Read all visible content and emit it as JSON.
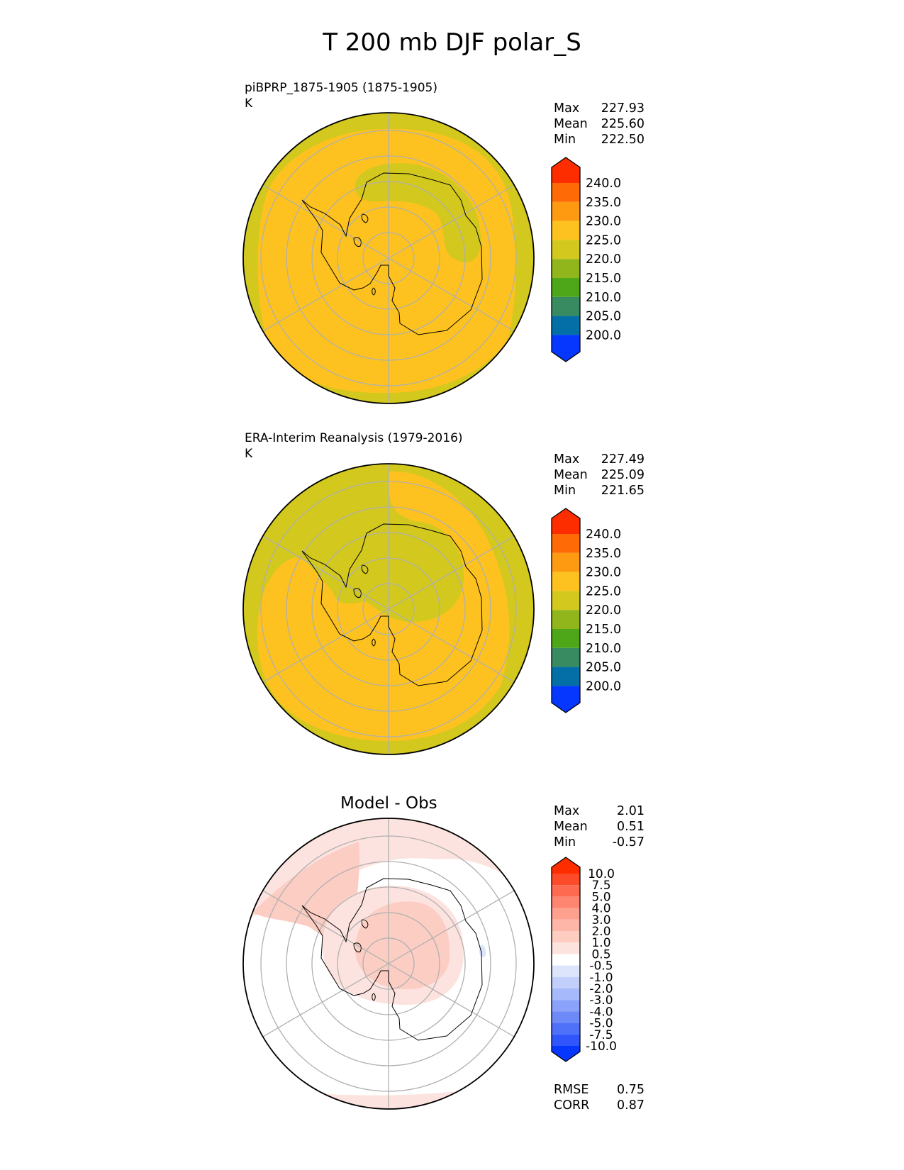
{
  "figure_title": "T 200 mb DJF polar_S",
  "colors": {
    "c200": "#0637ff",
    "c205": "#046fa6",
    "c210": "#388a60",
    "c215": "#4ea719",
    "c220": "#90b61b",
    "c225": "#d2c81e",
    "c230": "#fdc21f",
    "c235": "#fd9a12",
    "c240": "#fd6a06",
    "cmax": "#fd2d00",
    "coast": "#000000",
    "grid": "#b0b0b0",
    "diff_pos_light": "#fde3df",
    "diff_pos_mid": "#fccdc3",
    "diff_neg_light": "#dbe4fb"
  },
  "panels": [
    {
      "title": "piBPRP_1875-1905 (1875-1905)",
      "units": "K",
      "stats": {
        "max_label": "Max",
        "max": "227.93",
        "mean_label": "Mean",
        "mean": "225.60",
        "min_label": "Min",
        "min": "222.50"
      },
      "colorbar": {
        "ticks": [
          "240.0",
          "235.0",
          "230.0",
          "225.0",
          "220.0",
          "215.0",
          "210.0",
          "205.0",
          "200.0"
        ]
      }
    },
    {
      "title": "ERA-Interim Reanalysis (1979-2016)",
      "units": "K",
      "stats": {
        "max_label": "Max",
        "max": "227.49",
        "mean_label": "Mean",
        "mean": "225.09",
        "min_label": "Min",
        "min": "221.65"
      },
      "colorbar": {
        "ticks": [
          "240.0",
          "235.0",
          "230.0",
          "225.0",
          "220.0",
          "215.0",
          "210.0",
          "205.0",
          "200.0"
        ]
      }
    },
    {
      "title": "Model - Obs",
      "stats": {
        "max_label": "Max",
        "max": "2.01",
        "mean_label": "Mean",
        "mean": "0.51",
        "min_label": "Min",
        "min": "-0.57"
      },
      "colorbar": {
        "ticks": [
          "10.0",
          "7.5",
          "5.0",
          "4.0",
          "3.0",
          "2.0",
          "1.0",
          "0.5",
          "-0.5",
          "-1.0",
          "-2.0",
          "-3.0",
          "-4.0",
          "-5.0",
          "-7.5",
          "-10.0"
        ]
      },
      "metrics": {
        "rmse_label": "RMSE",
        "rmse": "0.75",
        "corr_label": "CORR",
        "corr": "0.87"
      }
    }
  ]
}
